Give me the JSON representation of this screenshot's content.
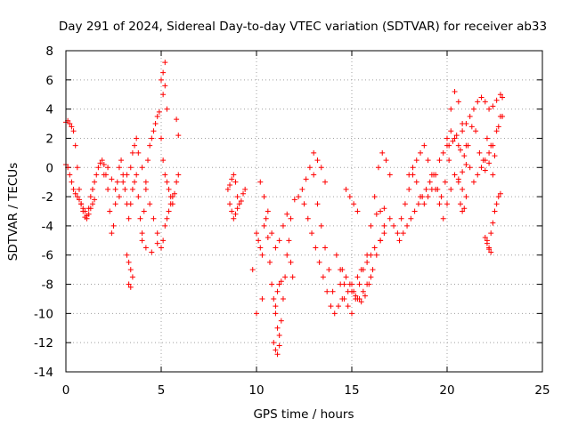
{
  "chart_data": {
    "type": "scatter",
    "title": "Day 291 of 2024, Sidereal Day-to-day VTEC variation (SDTVAR) for receiver ab33",
    "xlabel": "GPS time / hours",
    "ylabel": "SDTVAR / TECUs",
    "xlim": [
      0,
      25
    ],
    "ylim": [
      -14,
      8
    ],
    "xticks": [
      0,
      5,
      10,
      15,
      20,
      25
    ],
    "xtick_labels": [
      "0",
      "5",
      "10",
      "15",
      "20",
      "25"
    ],
    "yticks": [
      -14,
      -12,
      -10,
      -8,
      -6,
      -4,
      -2,
      0,
      2,
      4,
      6,
      8
    ],
    "ytick_labels": [
      "-14",
      "-12",
      "-10",
      "-8",
      "-6",
      "-4",
      "-2",
      "0",
      "2",
      "4",
      "6",
      "8"
    ],
    "grid": true,
    "marker": "plus",
    "marker_color": "#ff0000",
    "series": [
      {
        "name": "SDTVAR",
        "x": [
          0.0,
          0.1,
          0.2,
          0.3,
          0.4,
          0.5,
          0.6,
          0.7,
          0.8,
          0.9,
          1.0,
          1.1,
          1.2,
          1.3,
          1.4,
          1.5,
          1.6,
          1.7,
          1.8,
          1.9,
          2.0,
          2.1,
          2.2,
          2.3,
          2.4,
          2.5,
          2.6,
          2.7,
          2.8,
          2.9,
          3.0,
          3.1,
          3.2,
          3.3,
          3.4,
          3.5,
          3.6,
          3.7,
          3.8,
          3.9,
          4.0,
          4.1,
          4.2,
          4.3,
          4.4,
          4.5,
          4.6,
          4.7,
          4.8,
          4.9,
          5.0,
          5.1,
          5.2,
          5.3,
          5.4,
          5.5,
          5.6,
          5.7,
          5.8,
          5.9,
          0.0,
          0.1,
          0.2,
          0.3,
          0.4,
          0.5,
          0.6,
          0.7,
          0.8,
          0.9,
          1.0,
          1.1,
          1.2,
          1.3,
          1.4,
          1.5,
          2.0,
          2.2,
          2.4,
          2.6,
          2.8,
          3.0,
          3.2,
          3.4,
          3.5,
          3.6,
          3.7,
          3.8,
          4.0,
          4.2,
          4.4,
          4.6,
          4.8,
          5.0,
          5.1,
          5.2,
          5.3,
          5.4,
          5.5,
          5.6,
          3.2,
          3.3,
          3.4,
          3.5,
          3.3,
          3.4,
          4.0,
          4.2,
          4.5,
          4.8,
          5.0,
          5.1,
          5.2,
          5.1,
          5.2,
          5.3,
          5.8,
          5.9,
          8.5,
          8.6,
          8.7,
          8.8,
          8.9,
          9.0,
          9.1,
          9.2,
          9.3,
          9.4,
          8.6,
          8.7,
          8.8,
          8.9,
          9.0,
          10.0,
          10.1,
          10.2,
          10.3,
          10.4,
          10.5,
          10.6,
          10.7,
          10.8,
          10.9,
          11.0,
          11.1,
          11.2,
          11.3,
          11.4,
          11.5,
          11.6,
          11.7,
          11.8,
          11.9,
          10.2,
          10.4,
          10.6,
          10.8,
          11.0,
          11.2,
          11.4,
          11.6,
          11.8,
          12.0,
          10.9,
          11.0,
          11.1,
          11.2,
          11.0,
          11.1,
          11.2,
          11.3,
          9.8,
          10.0,
          10.3,
          12.2,
          12.4,
          12.6,
          12.8,
          13.0,
          13.2,
          13.4,
          13.6,
          13.8,
          14.0,
          12.5,
          12.7,
          12.9,
          13.1,
          13.3,
          13.5,
          13.7,
          13.9,
          14.1,
          13.0,
          13.2,
          13.4,
          13.6,
          14.4,
          14.6,
          14.8,
          15.0,
          15.2,
          15.4,
          15.6,
          15.8,
          16.0,
          16.2,
          16.4,
          16.6,
          16.8,
          17.0,
          14.5,
          14.7,
          14.9,
          15.1,
          15.3,
          15.5,
          15.7,
          15.9,
          16.1,
          16.3,
          16.5,
          16.7,
          14.2,
          14.4,
          14.6,
          15.0,
          15.2,
          15.4,
          15.6,
          15.8,
          16.0,
          14.3,
          14.5,
          14.8,
          15.0,
          15.3,
          15.5,
          15.8,
          16.0,
          16.2,
          16.5,
          16.7,
          14.7,
          14.9,
          15.1,
          15.3,
          16.3,
          16.5,
          16.7,
          17.0,
          17.2,
          17.4,
          17.6,
          17.8,
          18.0,
          18.2,
          18.4,
          18.6,
          18.8,
          19.0,
          19.2,
          19.4,
          19.6,
          19.8,
          20.0,
          17.5,
          17.7,
          17.9,
          18.1,
          18.3,
          18.5,
          18.7,
          18.9,
          19.1,
          19.3,
          19.5,
          19.7,
          19.9,
          20.1,
          18.0,
          18.2,
          18.4,
          18.6,
          18.8,
          19.0,
          19.2,
          19.4,
          19.6,
          19.8,
          20.0,
          20.2,
          20.0,
          20.2,
          20.4,
          20.6,
          20.8,
          21.0,
          21.2,
          21.4,
          21.6,
          21.8,
          22.0,
          22.2,
          22.4,
          22.6,
          22.8,
          22.9,
          20.1,
          20.3,
          20.5,
          20.7,
          20.9,
          21.1,
          21.3,
          21.5,
          21.7,
          21.9,
          22.1,
          22.3,
          22.5,
          22.7,
          22.9,
          20.2,
          20.4,
          20.6,
          20.8,
          21.0,
          21.2,
          21.4,
          21.6,
          21.8,
          22.0,
          22.2,
          22.4,
          22.6,
          22.8,
          22.0,
          22.1,
          22.2,
          22.3,
          22.4,
          22.5,
          22.6,
          22.7,
          22.8,
          22.1,
          22.2,
          22.3,
          20.4,
          20.6,
          20.8,
          21.0,
          20.6,
          20.8,
          21.0,
          20.7,
          20.8,
          20.9,
          22.0,
          22.2,
          22.4
        ],
        "y": [
          3.1,
          3.2,
          3.0,
          2.8,
          2.5,
          1.5,
          0.0,
          -1.5,
          -2.5,
          -3.0,
          -3.4,
          -3.3,
          -2.8,
          -2.0,
          -1.5,
          -1.0,
          -0.5,
          0.0,
          0.3,
          0.5,
          0.2,
          -0.5,
          -1.5,
          -3.0,
          -4.5,
          -4.0,
          -2.5,
          -1.0,
          0.0,
          0.5,
          -0.5,
          -1.5,
          -2.5,
          -3.5,
          -2.5,
          -1.5,
          -1.0,
          -0.5,
          -2.0,
          -3.5,
          -4.5,
          -3.0,
          -1.0,
          0.5,
          1.5,
          2.0,
          2.5,
          3.0,
          3.5,
          3.8,
          2.0,
          0.5,
          -0.5,
          -1.0,
          -1.5,
          -2.0,
          -2.5,
          -1.8,
          -1.0,
          -0.5,
          0.2,
          0.0,
          -0.5,
          -1.0,
          -1.5,
          -1.8,
          -2.0,
          -2.2,
          -2.5,
          -2.8,
          -3.0,
          -3.5,
          -3.2,
          -2.8,
          -2.5,
          -2.2,
          -0.5,
          0.0,
          -0.8,
          -1.5,
          -2.0,
          -1.0,
          -0.5,
          0.0,
          1.0,
          1.5,
          2.0,
          1.0,
          0.0,
          -1.5,
          -2.5,
          -3.5,
          -4.5,
          -5.5,
          -5.0,
          -4.0,
          -3.5,
          -3.0,
          -2.5,
          -2.0,
          -6.0,
          -6.5,
          -7.0,
          -7.5,
          -8.0,
          -8.2,
          -5.0,
          -5.5,
          -5.8,
          -5.2,
          6.0,
          6.5,
          7.2,
          5.0,
          5.6,
          4.0,
          3.3,
          2.2,
          -1.5,
          -1.2,
          -0.8,
          -0.5,
          -1.0,
          -2.0,
          -2.5,
          -2.3,
          -1.8,
          -1.5,
          -2.5,
          -3.0,
          -3.5,
          -3.2,
          -2.8,
          -4.5,
          -5.0,
          -5.5,
          -6.0,
          -4.0,
          -3.5,
          -4.8,
          -6.5,
          -8.0,
          -9.0,
          -10.0,
          -11.0,
          -11.5,
          -10.5,
          -9.0,
          -7.5,
          -6.0,
          -5.0,
          -6.5,
          -7.5,
          -1.0,
          -2.0,
          -3.0,
          -4.5,
          -5.5,
          -5.0,
          -4.0,
          -3.2,
          -3.5,
          -2.2,
          -12.0,
          -12.5,
          -12.8,
          -12.2,
          -9.5,
          -8.5,
          -8.0,
          -7.8,
          -7.0,
          -10.0,
          -9.0,
          -2.0,
          -1.5,
          -0.8,
          0.0,
          -0.5,
          -2.5,
          -4.0,
          -5.5,
          -7.0,
          -8.5,
          -2.5,
          -3.5,
          -4.5,
          -5.5,
          -6.5,
          -7.5,
          -8.5,
          -9.5,
          -10.0,
          1.0,
          0.5,
          0.0,
          -1.0,
          -8.0,
          -9.0,
          -9.5,
          -10.0,
          -9.0,
          -8.0,
          -7.0,
          -6.0,
          -4.0,
          -2.0,
          0.0,
          1.0,
          0.5,
          -0.5,
          -7.0,
          -7.5,
          -8.0,
          -8.5,
          -9.0,
          -9.2,
          -8.8,
          -8.0,
          -7.0,
          -6.0,
          -5.0,
          -4.0,
          -6.0,
          -7.0,
          -8.0,
          -8.5,
          -8.8,
          -9.0,
          -8.5,
          -8.0,
          -7.5,
          -9.5,
          -9.0,
          -8.5,
          -8.0,
          -7.5,
          -7.0,
          -6.5,
          -6.0,
          -5.5,
          -5.0,
          -4.5,
          -1.5,
          -2.0,
          -2.5,
          -3.0,
          -3.2,
          -3.0,
          -2.8,
          -3.5,
          -4.0,
          -4.5,
          -3.5,
          -2.5,
          -1.5,
          -0.5,
          -1.0,
          -2.0,
          -2.5,
          -2.0,
          -1.5,
          -0.5,
          0.5,
          1.0,
          1.5,
          -5.0,
          -4.5,
          -4.0,
          -3.5,
          -3.0,
          -2.5,
          -2.0,
          -1.5,
          -1.0,
          -0.5,
          -1.5,
          -2.0,
          -1.0,
          0.5,
          -0.5,
          0.0,
          0.5,
          1.0,
          1.5,
          0.5,
          -0.5,
          -1.5,
          -2.5,
          -3.5,
          -2.5,
          -1.5,
          2.0,
          2.5,
          2.0,
          1.5,
          2.5,
          3.0,
          3.5,
          4.0,
          4.5,
          4.8,
          4.5,
          4.0,
          4.2,
          4.6,
          5.0,
          4.8,
          1.5,
          1.8,
          2.2,
          1.2,
          0.8,
          1.5,
          2.8,
          2.5,
          1.0,
          0.5,
          2.0,
          1.5,
          0.8,
          2.8,
          3.5,
          4.0,
          5.2,
          4.5,
          3.0,
          1.5,
          0.0,
          -1.0,
          -0.5,
          0.0,
          0.5,
          1.0,
          1.5,
          2.5,
          3.5,
          -4.8,
          -5.2,
          -5.6,
          -4.5,
          -3.8,
          -3.0,
          -2.5,
          -2.0,
          -1.8,
          -5.0,
          -5.5,
          -5.8,
          -0.5,
          -1.0,
          -1.5,
          -2.0,
          -0.8,
          -0.3,
          0.2,
          -2.5,
          -3.0,
          -2.8,
          -0.2,
          0.3,
          -0.5
        ]
      }
    ]
  }
}
